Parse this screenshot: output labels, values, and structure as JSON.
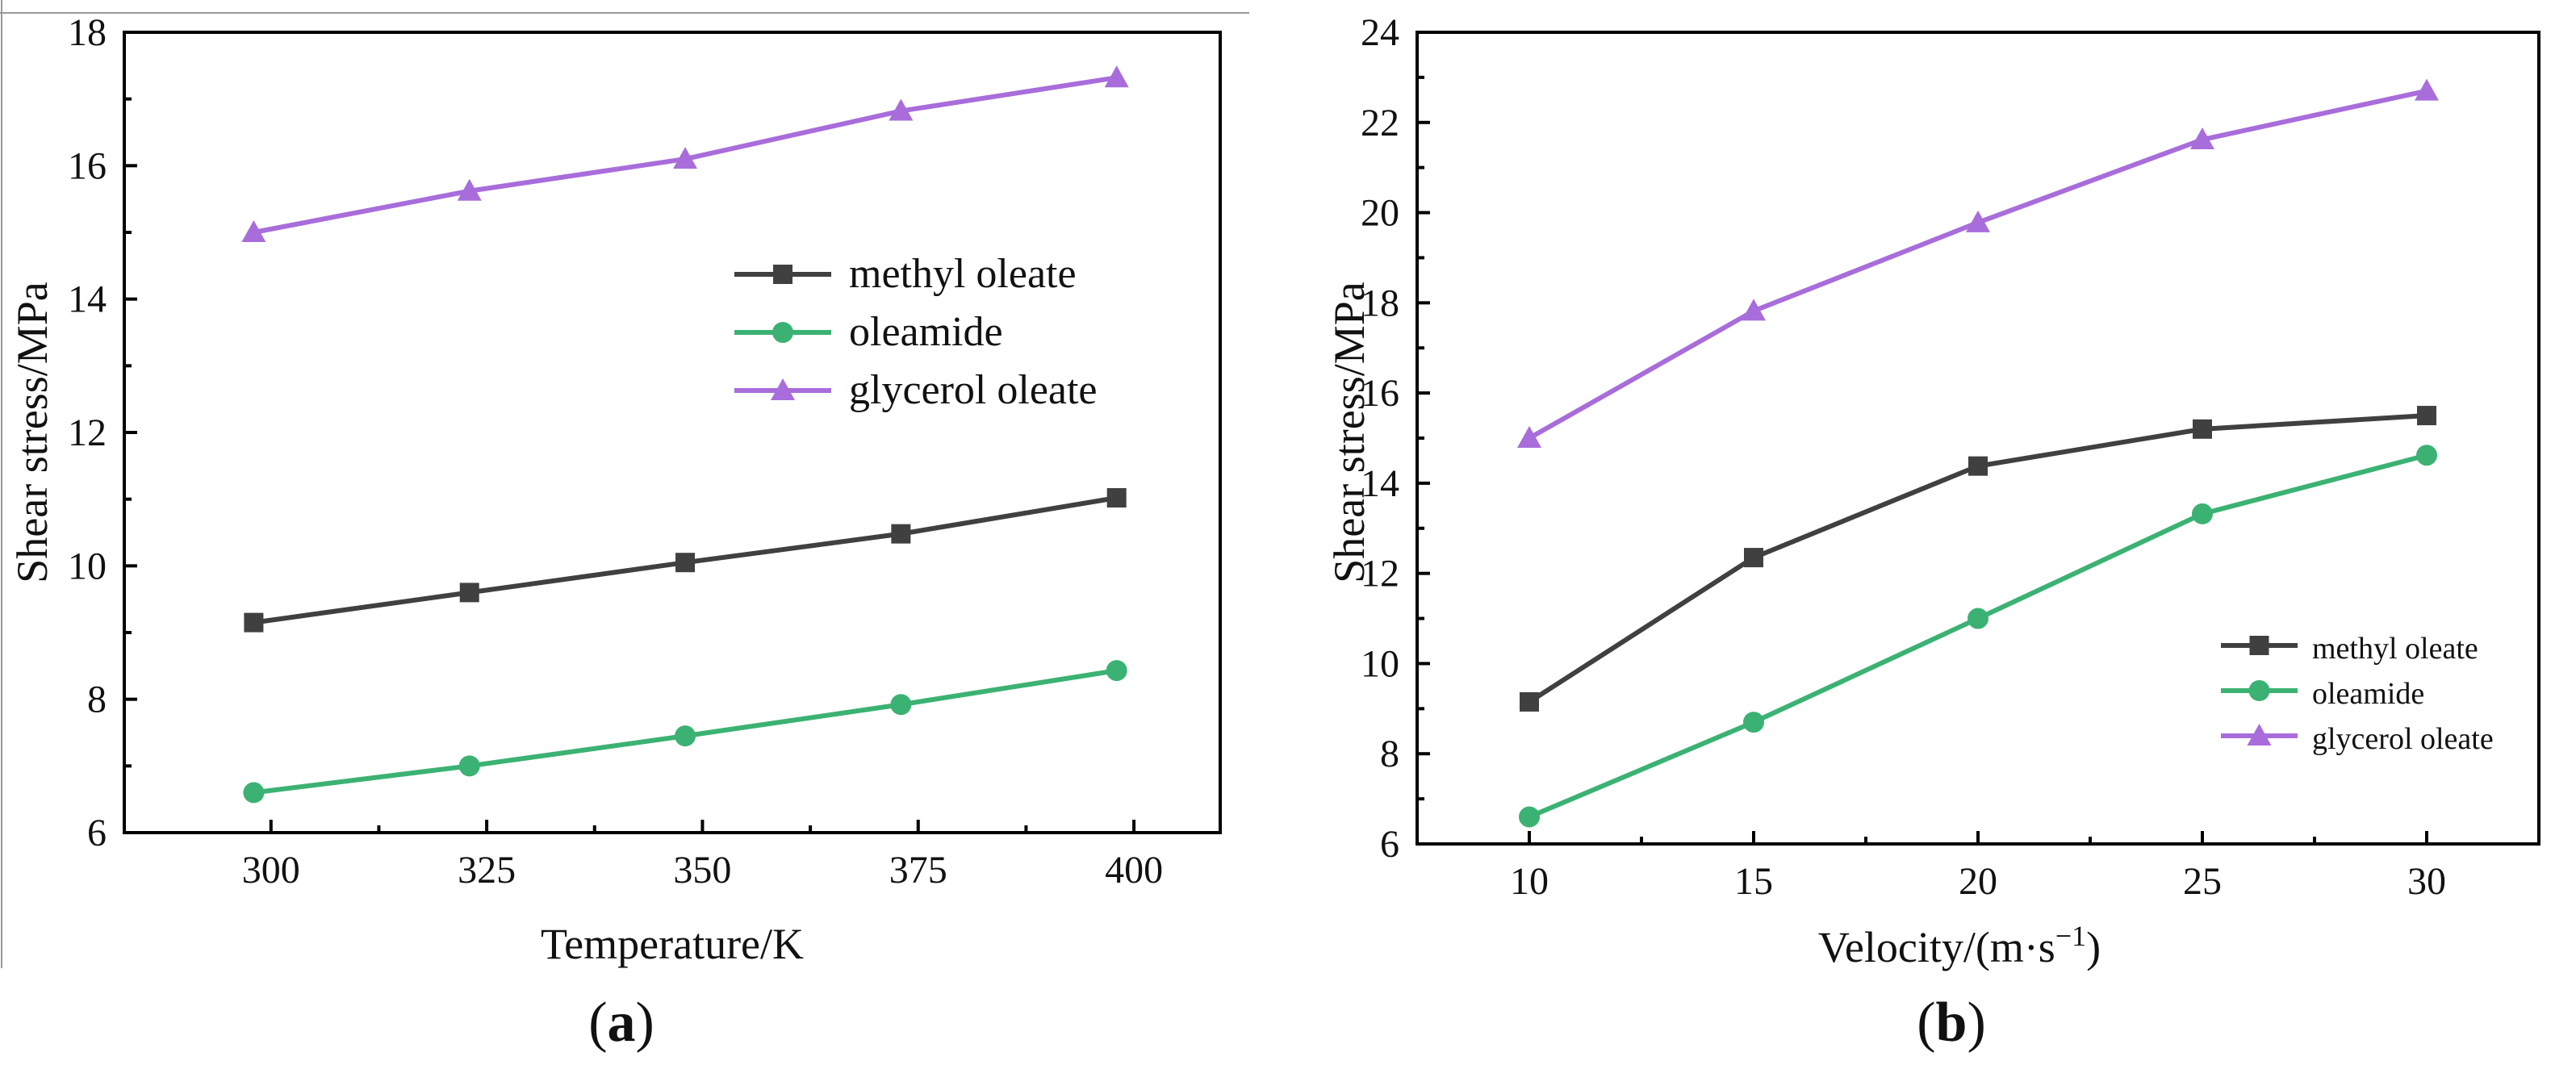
{
  "figure_captions": {
    "a": {
      "open": "(",
      "letter": "a",
      "close": ")"
    },
    "b": {
      "open": "(",
      "letter": "b",
      "close": ")"
    }
  },
  "series_colors": {
    "methyl_oleate": "#404040",
    "oleamide": "#3bb273",
    "glycerol_oleate": "#a86ddb"
  },
  "chart_data": [
    {
      "type": "line",
      "panel": "a",
      "title": "",
      "xlabel": "Temperature/K",
      "ylabel": "Shear stress/MPa",
      "xlim": [
        283,
        410
      ],
      "ylim": [
        6,
        18
      ],
      "x_ticks": [
        300,
        325,
        350,
        375,
        400
      ],
      "y_ticks": [
        6,
        8,
        10,
        12,
        14,
        16,
        18
      ],
      "x_tick_labels": [
        "300",
        "325",
        "350",
        "375",
        "400"
      ],
      "y_tick_labels": [
        "6",
        "8",
        "10",
        "12",
        "14",
        "16",
        "18"
      ],
      "legend_position": "center-right",
      "series": [
        {
          "name": "methyl oleate",
          "key": "methyl_oleate",
          "marker": "square",
          "x": [
            298,
            323,
            348,
            373,
            398
          ],
          "values": [
            9.15,
            9.6,
            10.05,
            10.48,
            11.02
          ]
        },
        {
          "name": "oleamide",
          "key": "oleamide",
          "marker": "circle",
          "x": [
            298,
            323,
            348,
            373,
            398
          ],
          "values": [
            6.6,
            7.0,
            7.45,
            7.92,
            8.43
          ]
        },
        {
          "name": "glycerol oleate",
          "key": "glycerol_oleate",
          "marker": "triangle",
          "x": [
            298,
            323,
            348,
            373,
            398
          ],
          "values": [
            15.0,
            15.62,
            16.1,
            16.82,
            17.32
          ]
        }
      ]
    },
    {
      "type": "line",
      "panel": "b",
      "title": "",
      "xlabel": "Velocity/(m·s",
      "xlabel_sup": "−1",
      "xlabel_end": ")",
      "ylabel": "Shear stress/MPa",
      "xlim": [
        7.5,
        32.5
      ],
      "ylim": [
        6,
        24
      ],
      "x_ticks": [
        10,
        15,
        20,
        25,
        30
      ],
      "y_ticks": [
        6,
        8,
        10,
        12,
        14,
        16,
        18,
        20,
        22,
        24
      ],
      "x_tick_labels": [
        "10",
        "15",
        "20",
        "25",
        "30"
      ],
      "y_tick_labels": [
        "6",
        "8",
        "10",
        "12",
        "14",
        "16",
        "18",
        "20",
        "22",
        "24"
      ],
      "legend_position": "bottom-right",
      "series": [
        {
          "name": "methyl oleate",
          "key": "methyl_oleate",
          "marker": "square",
          "x": [
            10,
            15,
            20,
            25,
            30
          ],
          "values": [
            9.15,
            12.35,
            14.38,
            15.2,
            15.5
          ]
        },
        {
          "name": "oleamide",
          "key": "oleamide",
          "marker": "circle",
          "x": [
            10,
            15,
            20,
            25,
            30
          ],
          "values": [
            6.6,
            8.7,
            11.0,
            13.32,
            14.62
          ]
        },
        {
          "name": "glycerol oleate",
          "key": "glycerol_oleate",
          "marker": "triangle",
          "x": [
            10,
            15,
            20,
            25,
            30
          ],
          "values": [
            15.0,
            17.82,
            19.78,
            21.62,
            22.7
          ]
        }
      ]
    }
  ]
}
